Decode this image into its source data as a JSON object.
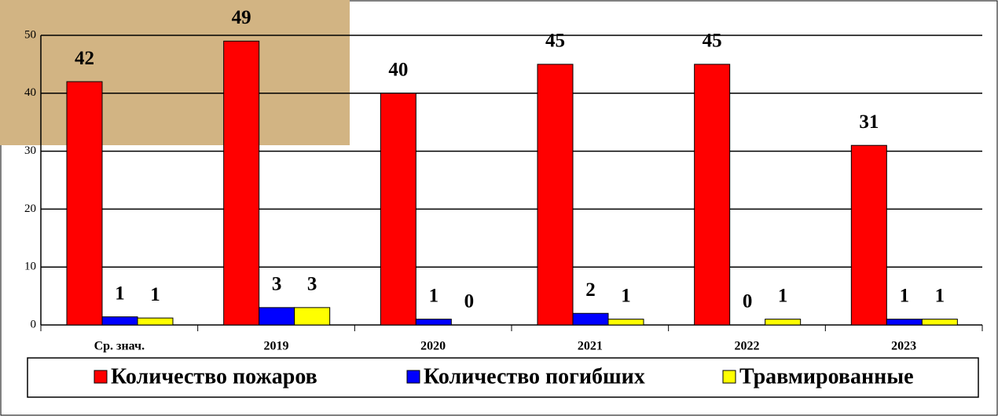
{
  "chart_data": {
    "type": "bar",
    "categories": [
      "Ср. знач.",
      "2019",
      "2020",
      "2021",
      "2022",
      "2023"
    ],
    "series": [
      {
        "name": "Количество пожаров",
        "color": "#ff0000",
        "values": [
          42,
          49,
          40,
          45,
          45,
          31
        ]
      },
      {
        "name": "Количество погибших",
        "color": "#0000ff",
        "values": [
          1.4,
          3,
          1,
          2,
          0,
          1
        ],
        "value_labels": [
          "1",
          "3",
          "1",
          "2",
          "0",
          "1"
        ]
      },
      {
        "name": "Травмированные",
        "color": "#ffff00",
        "values": [
          1.2,
          3,
          0,
          1,
          1,
          1
        ],
        "value_labels": [
          "1",
          "3",
          "0",
          "1",
          "1",
          "1"
        ]
      }
    ],
    "ylim": [
      0,
      50
    ],
    "yticks": [
      0,
      10,
      20,
      30,
      40,
      50
    ],
    "grid": true,
    "legend": "bottom"
  }
}
